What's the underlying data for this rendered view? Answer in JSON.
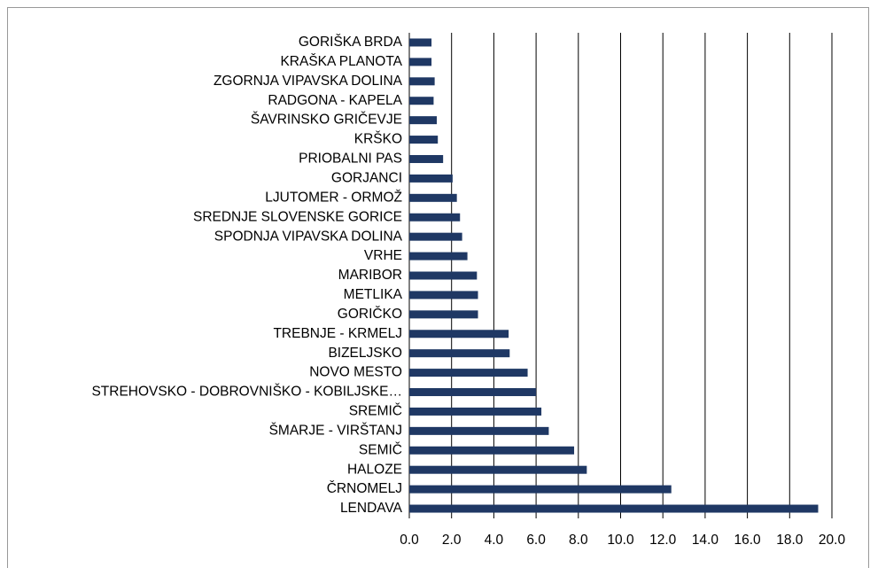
{
  "chart_data": {
    "type": "barh",
    "categories": [
      "GORIŠKA BRDA",
      "KRAŠKA PLANOTA",
      "ZGORNJA VIPAVSKA DOLINA",
      "RADGONA - KAPELA",
      "ŠAVRINSKO GRIČEVJE",
      "KRŠKO",
      "PRIOBALNI PAS",
      "GORJANCI",
      "LJUTOMER - ORMOŽ",
      "SREDNJE SLOVENSKE GORICE",
      "SPODNJA VIPAVSKA DOLINA",
      "VRHE",
      "MARIBOR",
      "METLIKA",
      "GORIČKO",
      "TREBNJE - KRMELJ",
      "BIZELJSKO",
      "NOVO MESTO",
      "STREHOVSKO - DOBROVNIŠKO - KOBILJSKE…",
      "SREMIČ",
      "ŠMARJE - VIRŠTANJ",
      "SEMIČ",
      "HALOZE",
      "ČRNOMELJ",
      "LENDAVA"
    ],
    "values": [
      1.05,
      1.05,
      1.2,
      1.15,
      1.3,
      1.35,
      1.6,
      2.05,
      2.25,
      2.4,
      2.5,
      2.75,
      3.2,
      3.25,
      3.25,
      4.7,
      4.75,
      5.6,
      6.0,
      6.25,
      6.6,
      7.8,
      8.4,
      12.4,
      19.35
    ],
    "color": "#1f3864",
    "xlim": [
      0,
      20
    ],
    "xticks": [
      {
        "value": 0,
        "label": "0.0"
      },
      {
        "value": 2,
        "label": "2.0"
      },
      {
        "value": 4,
        "label": "4.0"
      },
      {
        "value": 6,
        "label": "6.0"
      },
      {
        "value": 8,
        "label": "8.0"
      },
      {
        "value": 10,
        "label": "10.0"
      },
      {
        "value": 12,
        "label": "12.0"
      },
      {
        "value": 14,
        "label": "14.0"
      },
      {
        "value": 16,
        "label": "16.0"
      },
      {
        "value": 18,
        "label": "18.0"
      },
      {
        "value": 20,
        "label": "20.0"
      }
    ],
    "grid": true
  }
}
